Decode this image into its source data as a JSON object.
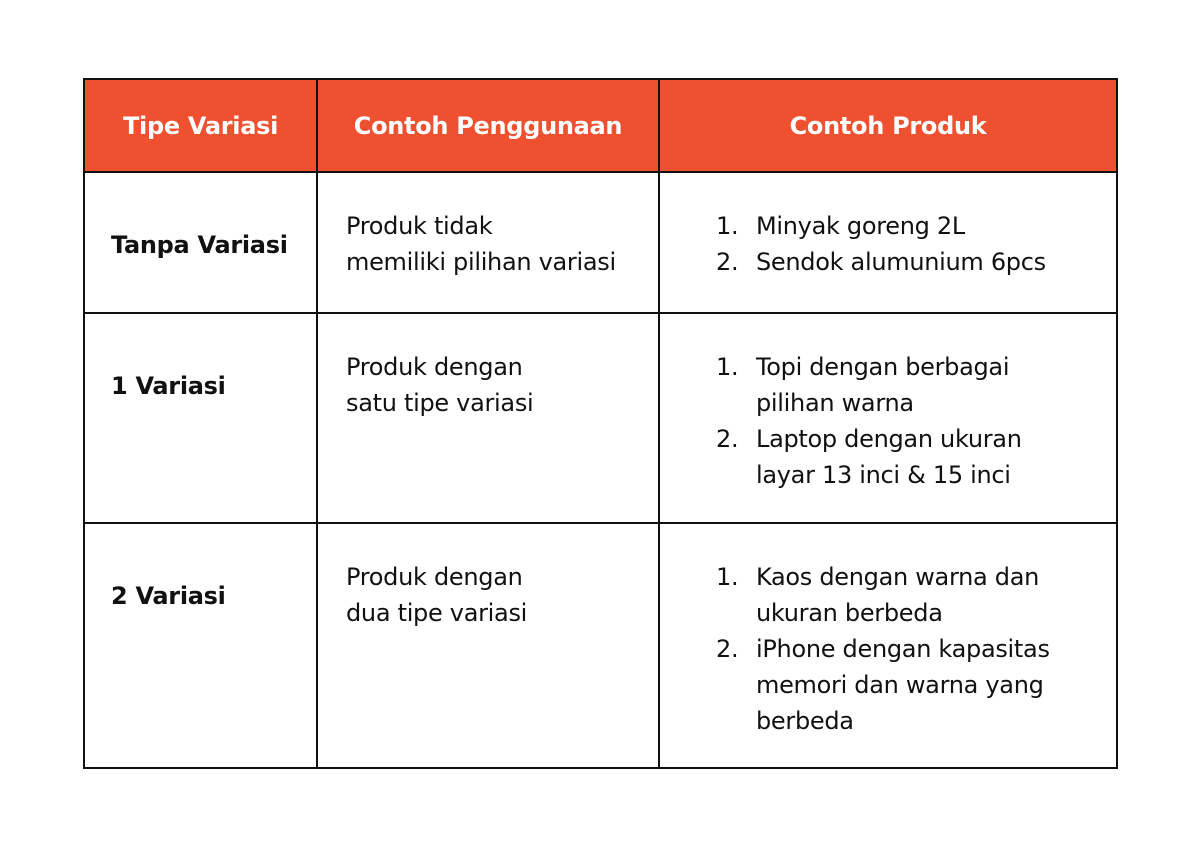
{
  "colors": {
    "header_bg": "#EE5030",
    "header_text": "#FFFFFF",
    "border": "#111111"
  },
  "headers": [
    "Tipe Variasi",
    "Contoh Penggunaan",
    "Contoh Produk"
  ],
  "rows": [
    {
      "tipe": "Tanpa Variasi",
      "penggunaan": [
        "Produk tidak",
        "memiliki pilihan variasi"
      ],
      "produk": [
        {
          "num": "1.",
          "lines": [
            "Minyak goreng 2L"
          ]
        },
        {
          "num": "2.",
          "lines": [
            "Sendok alumunium 6pcs"
          ]
        }
      ]
    },
    {
      "tipe": "1 Variasi",
      "penggunaan": [
        "Produk dengan",
        "satu tipe variasi"
      ],
      "produk": [
        {
          "num": "1.",
          "lines": [
            "Topi dengan berbagai",
            "pilihan warna"
          ]
        },
        {
          "num": "2.",
          "lines": [
            "Laptop dengan ukuran",
            "layar 13 inci & 15 inci"
          ]
        }
      ]
    },
    {
      "tipe": "2 Variasi",
      "penggunaan": [
        "Produk dengan",
        "dua tipe variasi"
      ],
      "produk": [
        {
          "num": "1.",
          "lines": [
            "Kaos dengan warna dan",
            "ukuran berbeda"
          ]
        },
        {
          "num": "2.",
          "lines": [
            "iPhone dengan kapasitas",
            "memori dan warna yang",
            "berbeda"
          ]
        }
      ]
    }
  ]
}
